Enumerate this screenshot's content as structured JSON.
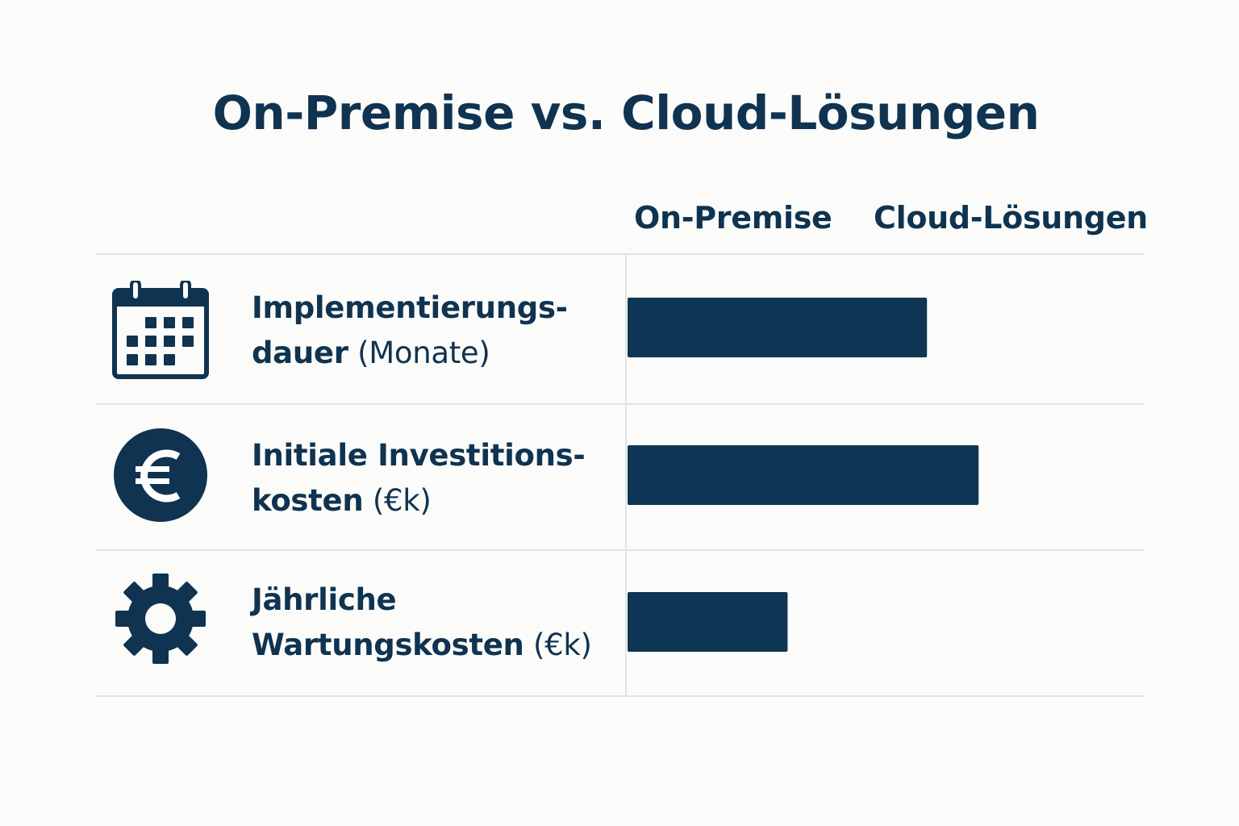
{
  "chart_data": {
    "type": "bar",
    "orientation": "horizontal",
    "title": "On-Premise vs. Cloud-Lösungen",
    "column_headers": [
      "On-Premise",
      "Cloud-Lösungen"
    ],
    "rows": [
      {
        "label_line1": "Implementierungs-",
        "label_line2_main": "dauer",
        "label_line2_unit": "(Monate)",
        "icon": "calendar-icon",
        "value": 0.58
      },
      {
        "label_line1": "Initiale Investitions-",
        "label_line2_main": "kosten",
        "label_line2_unit": "(€k)",
        "icon": "euro-coin-icon",
        "value": 0.68
      },
      {
        "label_line1": "Jährliche",
        "label_line2_main": "Wartungskosten",
        "label_line2_unit": "(€k)",
        "icon": "gear-icon",
        "value": 0.31
      }
    ],
    "xlim": [
      0,
      1
    ],
    "bar_color": "#0e3654",
    "grid": false,
    "legend": "none"
  }
}
